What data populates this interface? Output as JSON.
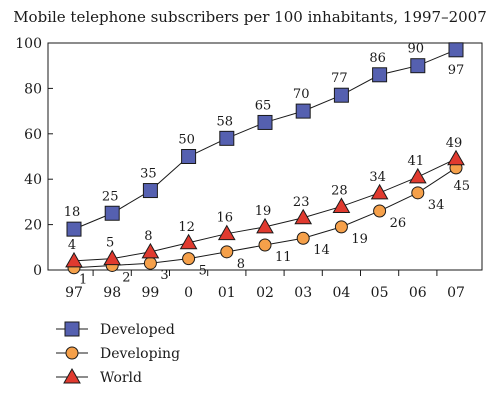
{
  "chart_data": {
    "type": "line",
    "title": "Mobile telephone subscribers per 100 inhabitants, 1997–2007",
    "xlabel": "",
    "ylabel": "",
    "categories": [
      "97",
      "98",
      "99",
      "0",
      "01",
      "02",
      "03",
      "04",
      "05",
      "06",
      "07"
    ],
    "ylim": [
      0,
      100
    ],
    "yticks": [
      0,
      20,
      40,
      60,
      80,
      100
    ],
    "grid": false,
    "legend_position": "bottom-left",
    "series": [
      {
        "name": "Developed",
        "marker": "square",
        "color": "#5560b0",
        "values": [
          18,
          25,
          35,
          50,
          58,
          65,
          70,
          77,
          86,
          90,
          97
        ],
        "labels": [
          "18",
          "25",
          "35",
          "50",
          "58",
          "65",
          "70",
          "77",
          "86",
          "90",
          "97"
        ]
      },
      {
        "name": "Developing",
        "marker": "circle",
        "color": "#f5a04a",
        "values": [
          1,
          2,
          3,
          5,
          8,
          11,
          14,
          19,
          26,
          34,
          45
        ],
        "labels": [
          "1",
          "2",
          "3",
          "5",
          "8",
          "11",
          "14",
          "19",
          "26",
          "34",
          "45"
        ]
      },
      {
        "name": "World",
        "marker": "triangle",
        "color": "#e03a2f",
        "values": [
          4,
          5,
          8,
          12,
          16,
          19,
          23,
          28,
          34,
          41,
          49
        ],
        "labels": [
          "4",
          "5",
          "8",
          "12",
          "16",
          "19",
          "23",
          "28",
          "34",
          "41",
          "49"
        ]
      }
    ]
  }
}
